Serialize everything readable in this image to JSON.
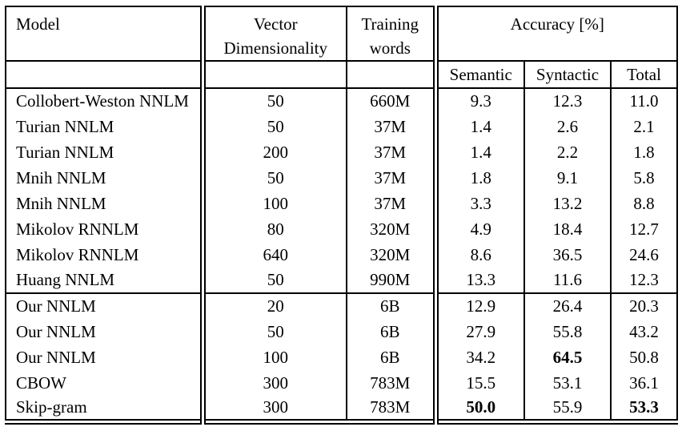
{
  "page": {
    "background_color": "#ffffff",
    "text_color": "#000000",
    "border_color": "#000000"
  },
  "table": {
    "header": {
      "model": "Model",
      "vector_line1": "Vector",
      "vector_line2": "Dimensionality",
      "training_line1": "Training",
      "training_line2": "words",
      "accuracy": "Accuracy [%]",
      "sub": {
        "semantic": "Semantic",
        "syntactic": "Syntactic",
        "total": "Total"
      }
    },
    "groups": [
      {
        "name": "baseline-models",
        "rows": [
          {
            "model": "Collobert-Weston NNLM",
            "dim": "50",
            "words": "660M",
            "semantic": "9.3",
            "syntactic": "12.3",
            "total": "11.0",
            "bold": []
          },
          {
            "model": "Turian NNLM",
            "dim": "50",
            "words": "37M",
            "semantic": "1.4",
            "syntactic": "2.6",
            "total": "2.1",
            "bold": []
          },
          {
            "model": "Turian NNLM",
            "dim": "200",
            "words": "37M",
            "semantic": "1.4",
            "syntactic": "2.2",
            "total": "1.8",
            "bold": []
          },
          {
            "model": "Mnih NNLM",
            "dim": "50",
            "words": "37M",
            "semantic": "1.8",
            "syntactic": "9.1",
            "total": "5.8",
            "bold": []
          },
          {
            "model": "Mnih NNLM",
            "dim": "100",
            "words": "37M",
            "semantic": "3.3",
            "syntactic": "13.2",
            "total": "8.8",
            "bold": []
          },
          {
            "model": "Mikolov RNNLM",
            "dim": "80",
            "words": "320M",
            "semantic": "4.9",
            "syntactic": "18.4",
            "total": "12.7",
            "bold": []
          },
          {
            "model": "Mikolov RNNLM",
            "dim": "640",
            "words": "320M",
            "semantic": "8.6",
            "syntactic": "36.5",
            "total": "24.6",
            "bold": []
          },
          {
            "model": "Huang NNLM",
            "dim": "50",
            "words": "990M",
            "semantic": "13.3",
            "syntactic": "11.6",
            "total": "12.3",
            "bold": []
          }
        ]
      },
      {
        "name": "our-models",
        "rows": [
          {
            "model": "Our NNLM",
            "dim": "20",
            "words": "6B",
            "semantic": "12.9",
            "syntactic": "26.4",
            "total": "20.3",
            "bold": []
          },
          {
            "model": "Our NNLM",
            "dim": "50",
            "words": "6B",
            "semantic": "27.9",
            "syntactic": "55.8",
            "total": "43.2",
            "bold": []
          },
          {
            "model": "Our NNLM",
            "dim": "100",
            "words": "6B",
            "semantic": "34.2",
            "syntactic": "64.5",
            "total": "50.8",
            "bold": [
              "syntactic"
            ]
          },
          {
            "model": "CBOW",
            "dim": "300",
            "words": "783M",
            "semantic": "15.5",
            "syntactic": "53.1",
            "total": "36.1",
            "bold": []
          },
          {
            "model": "Skip-gram",
            "dim": "300",
            "words": "783M",
            "semantic": "50.0",
            "syntactic": "55.9",
            "total": "53.3",
            "bold": [
              "semantic",
              "total"
            ]
          }
        ]
      }
    ]
  }
}
